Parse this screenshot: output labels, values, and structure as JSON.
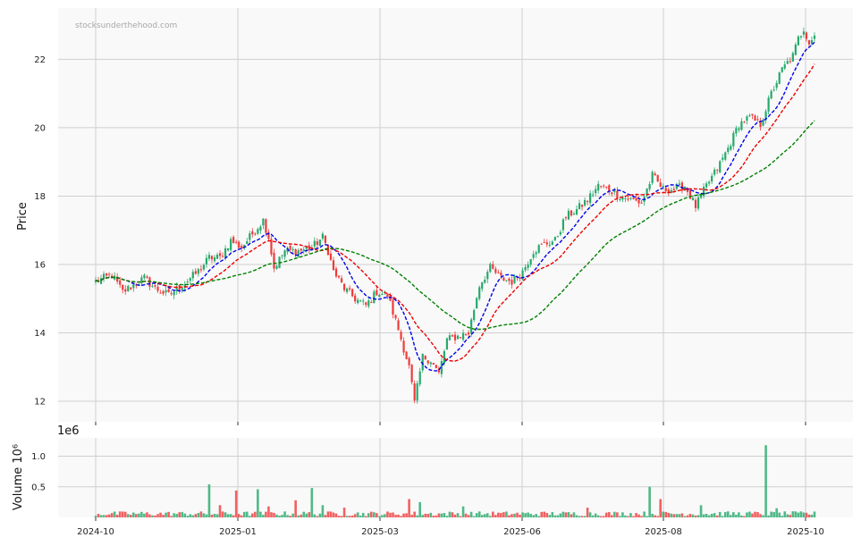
{
  "chart_data": {
    "type": "candlestick",
    "watermark": "stocksunderthehood.com",
    "colors": {
      "up": "#26a96c",
      "down": "#ef3b3b",
      "ma_fast": "#0000ee",
      "ma_mid": "#ee0000",
      "ma_slow": "#008000",
      "grid": "#cfcfcf",
      "panel_bg": "#f9f9f9"
    },
    "x_ticks": [
      "2024-10",
      "2025-01",
      "2025-03",
      "2025-06",
      "2025-08",
      "2025-10"
    ],
    "price_panel": {
      "ylabel": "Price",
      "ylim": [
        11.4,
        23.5
      ],
      "yticks": [
        12,
        14,
        16,
        18,
        20,
        22
      ],
      "grid": true,
      "close_anchors": [
        [
          0,
          15.5
        ],
        [
          6,
          15.7
        ],
        [
          10,
          15.2
        ],
        [
          14,
          15.4
        ],
        [
          18,
          15.6
        ],
        [
          22,
          15.3
        ],
        [
          27,
          15.1
        ],
        [
          32,
          15.4
        ],
        [
          38,
          15.8
        ],
        [
          42,
          16.2
        ],
        [
          46,
          16.2
        ],
        [
          50,
          16.7
        ],
        [
          54,
          16.5
        ],
        [
          58,
          16.9
        ],
        [
          62,
          17.3
        ],
        [
          64,
          16.8
        ],
        [
          66,
          15.9
        ],
        [
          70,
          16.4
        ],
        [
          75,
          16.4
        ],
        [
          80,
          16.5
        ],
        [
          84,
          16.8
        ],
        [
          86,
          16.4
        ],
        [
          88,
          15.8
        ],
        [
          92,
          15.3
        ],
        [
          96,
          15.0
        ],
        [
          100,
          14.8
        ],
        [
          104,
          15.2
        ],
        [
          108,
          15.1
        ],
        [
          112,
          14.1
        ],
        [
          116,
          13.0
        ],
        [
          118,
          11.95
        ],
        [
          121,
          13.3
        ],
        [
          124,
          13.2
        ],
        [
          127,
          12.8
        ],
        [
          130,
          13.8
        ],
        [
          134,
          13.9
        ],
        [
          138,
          14.0
        ],
        [
          142,
          15.4
        ],
        [
          146,
          15.9
        ],
        [
          150,
          15.6
        ],
        [
          154,
          15.5
        ],
        [
          158,
          15.8
        ],
        [
          162,
          16.4
        ],
        [
          166,
          16.6
        ],
        [
          170,
          16.7
        ],
        [
          174,
          17.4
        ],
        [
          178,
          17.6
        ],
        [
          182,
          17.9
        ],
        [
          186,
          18.3
        ],
        [
          190,
          18.2
        ],
        [
          194,
          18.0
        ],
        [
          198,
          17.9
        ],
        [
          202,
          17.8
        ],
        [
          206,
          18.6
        ],
        [
          210,
          18.2
        ],
        [
          214,
          18.2
        ],
        [
          218,
          18.3
        ],
        [
          222,
          17.7
        ],
        [
          226,
          18.3
        ],
        [
          230,
          18.8
        ],
        [
          234,
          19.4
        ],
        [
          238,
          20.1
        ],
        [
          242,
          20.3
        ],
        [
          246,
          20.1
        ],
        [
          250,
          21.0
        ],
        [
          254,
          21.7
        ],
        [
          258,
          22.1
        ],
        [
          260,
          22.6
        ],
        [
          262,
          22.9
        ],
        [
          264,
          22.5
        ],
        [
          266,
          22.7
        ]
      ]
    },
    "volume_panel": {
      "ylabel": "Volume  10⁶",
      "offset_label": "1e6",
      "ylim": [
        0,
        1.3
      ],
      "yticks": [
        "0.5",
        "1.0"
      ],
      "ytick_values": [
        0.5,
        1.0
      ],
      "spikes": [
        [
          42,
          0.54
        ],
        [
          46,
          0.2
        ],
        [
          52,
          0.44
        ],
        [
          60,
          0.46
        ],
        [
          64,
          0.18
        ],
        [
          74,
          0.28
        ],
        [
          80,
          0.48
        ],
        [
          84,
          0.2
        ],
        [
          92,
          0.16
        ],
        [
          116,
          0.3
        ],
        [
          120,
          0.25
        ],
        [
          136,
          0.18
        ],
        [
          182,
          0.16
        ],
        [
          205,
          0.5
        ],
        [
          209,
          0.3
        ],
        [
          224,
          0.2
        ],
        [
          248,
          1.18
        ],
        [
          252,
          0.15
        ]
      ]
    },
    "moving_averages": [
      {
        "window": 10,
        "color": "#0000ee",
        "style": "dashed"
      },
      {
        "window": 20,
        "color": "#ee0000",
        "style": "dashed"
      },
      {
        "window": 50,
        "color": "#008000",
        "style": "dashed"
      }
    ],
    "bar_count": 267
  }
}
